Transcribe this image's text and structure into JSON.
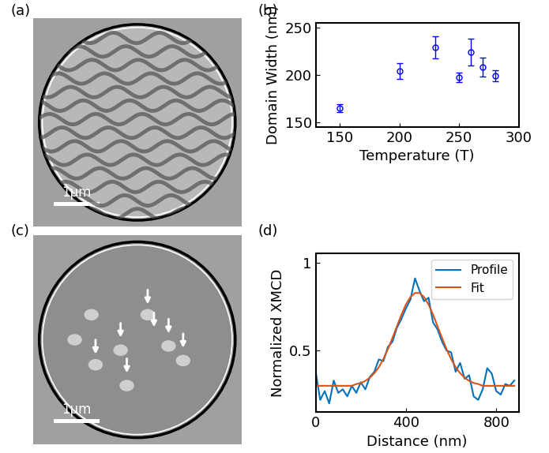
{
  "images": [
    {
      "panel_label": "(a)",
      "scale_bar": "1μm"
    },
    {
      "panel_label": "(c)",
      "scale_bar": "1μm"
    }
  ],
  "chart_data": [
    {
      "type": "scatter",
      "panel_label": "(b)",
      "x_label": "Temperature (T)",
      "y_label": "Domain Width (nm)",
      "x": [
        150,
        200,
        230,
        250,
        260,
        270,
        280
      ],
      "values": [
        165,
        204,
        229,
        197,
        224,
        208,
        199
      ],
      "errors": [
        4,
        8,
        12,
        5,
        14,
        10,
        6
      ],
      "color": "#0000ff",
      "marker": "o",
      "xlim": [
        130,
        300
      ],
      "xticks": [
        150,
        200,
        250,
        300
      ],
      "ylim": [
        145,
        255
      ],
      "yticks": [
        150,
        200,
        250
      ]
    },
    {
      "type": "line",
      "panel_label": "(d)",
      "x_label": "Distance (nm)",
      "y_label": "Normalized XMCD",
      "x": [
        0,
        20,
        40,
        60,
        80,
        100,
        120,
        140,
        160,
        180,
        200,
        220,
        240,
        260,
        280,
        300,
        320,
        340,
        360,
        380,
        400,
        420,
        440,
        460,
        480,
        500,
        520,
        540,
        560,
        580,
        600,
        620,
        640,
        660,
        680,
        700,
        720,
        740,
        760,
        780,
        800,
        820,
        840,
        860,
        880
      ],
      "series": [
        {
          "name": "Profile",
          "color": "#0072bd",
          "values": [
            0.38,
            0.22,
            0.27,
            0.2,
            0.33,
            0.26,
            0.28,
            0.24,
            0.3,
            0.26,
            0.32,
            0.28,
            0.35,
            0.38,
            0.45,
            0.44,
            0.52,
            0.55,
            0.63,
            0.68,
            0.74,
            0.79,
            0.91,
            0.84,
            0.78,
            0.8,
            0.66,
            0.62,
            0.55,
            0.5,
            0.49,
            0.38,
            0.43,
            0.34,
            0.36,
            0.24,
            0.22,
            0.28,
            0.4,
            0.37,
            0.27,
            0.25,
            0.31,
            0.3,
            0.33
          ]
        },
        {
          "name": "Fit",
          "color": "#d95319",
          "values": [
            0.3,
            0.3,
            0.3,
            0.3,
            0.3,
            0.3,
            0.3,
            0.3,
            0.3,
            0.31,
            0.316,
            0.328,
            0.346,
            0.372,
            0.406,
            0.452,
            0.508,
            0.571,
            0.638,
            0.704,
            0.762,
            0.804,
            0.827,
            0.827,
            0.804,
            0.762,
            0.704,
            0.638,
            0.571,
            0.508,
            0.452,
            0.406,
            0.372,
            0.346,
            0.328,
            0.316,
            0.31,
            0.3,
            0.3,
            0.3,
            0.3,
            0.3,
            0.3,
            0.3,
            0.3
          ]
        }
      ],
      "legend": "upper right",
      "xlim": [
        0,
        900
      ],
      "xticks": [
        0,
        400,
        800
      ],
      "ylim": [
        0.15,
        1.05
      ],
      "yticks": [
        0.5,
        1
      ]
    }
  ]
}
